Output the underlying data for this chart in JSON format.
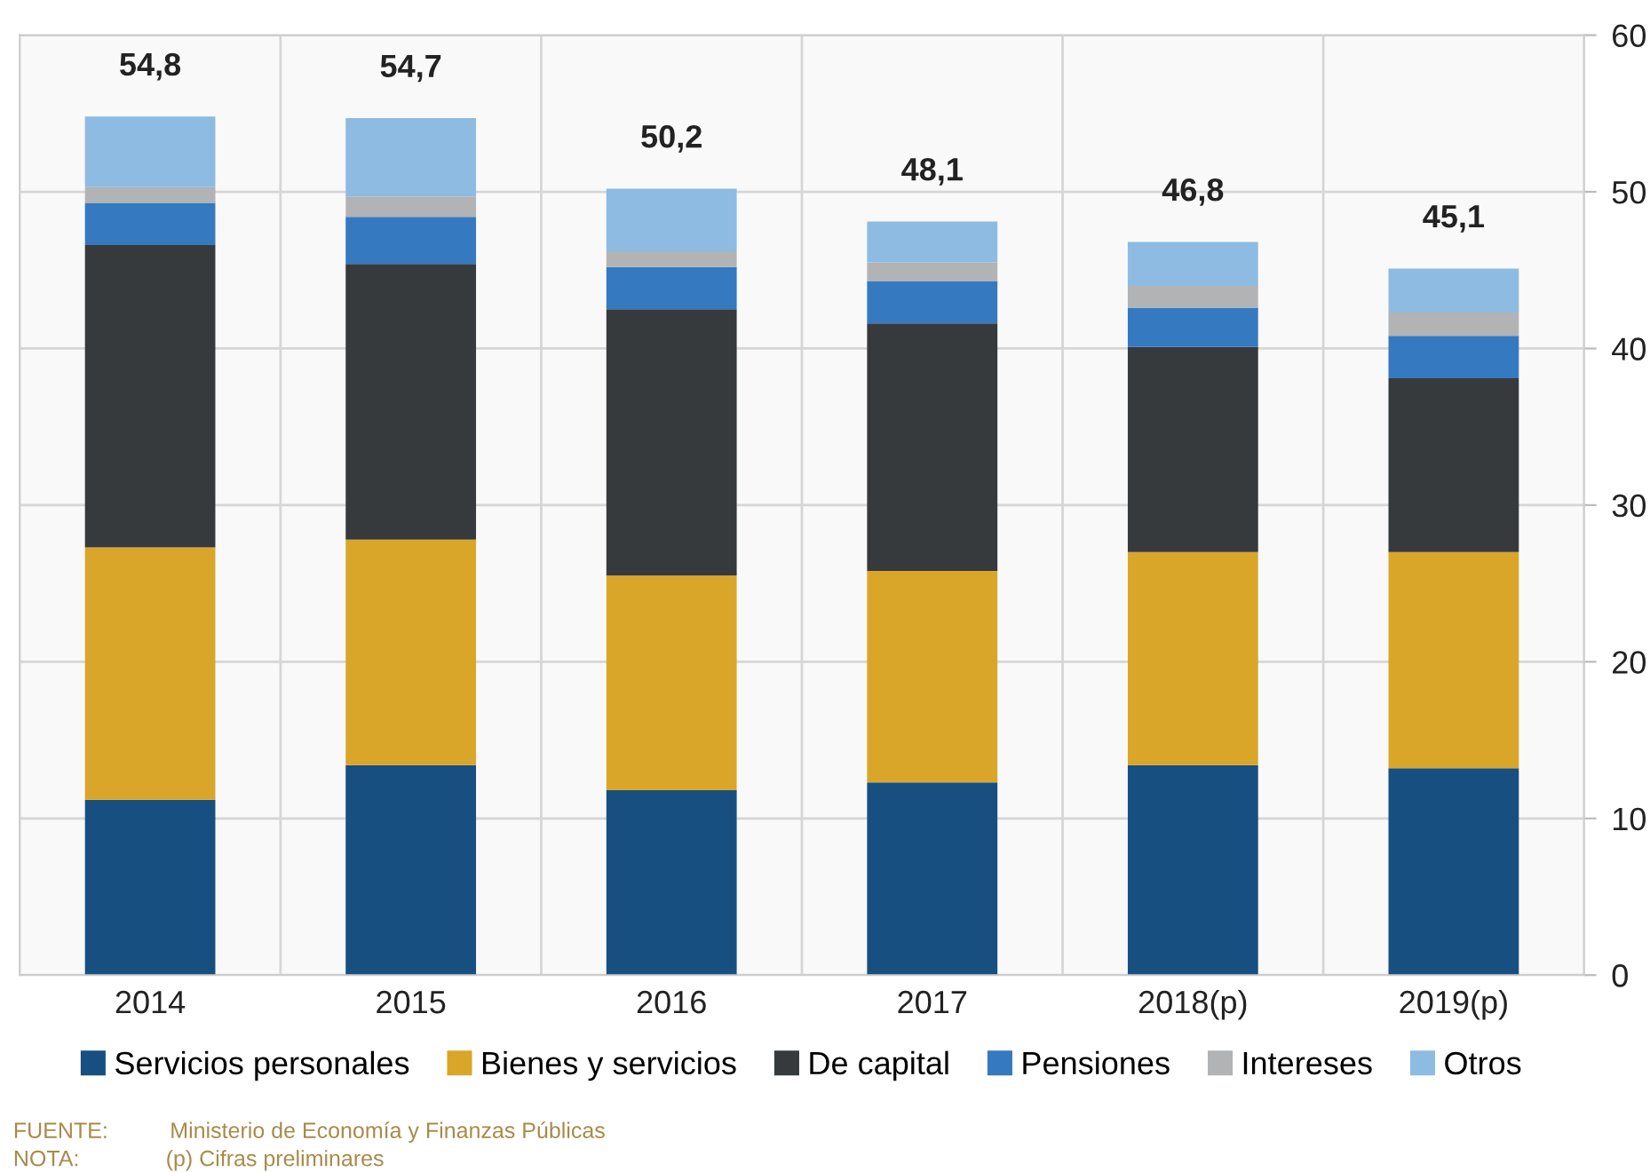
{
  "chart_data": {
    "type": "bar",
    "stacked": true,
    "categories": [
      "2014",
      "2015",
      "2016",
      "2017",
      "2018(p)",
      "2019(p)"
    ],
    "series": [
      {
        "name": "Servicios personales",
        "color": "#174f80",
        "values": [
          11.2,
          13.4,
          11.8,
          12.3,
          13.4,
          13.2
        ]
      },
      {
        "name": "Bienes y servicios",
        "color": "#d9a629",
        "values": [
          16.1,
          14.4,
          13.7,
          13.5,
          13.6,
          13.8
        ]
      },
      {
        "name": "De capital",
        "color": "#363a3d",
        "values": [
          19.3,
          17.6,
          17.0,
          15.8,
          13.1,
          11.1
        ]
      },
      {
        "name": "Pensiones",
        "color": "#3579c0",
        "values": [
          2.7,
          3.0,
          2.7,
          2.7,
          2.5,
          2.7
        ]
      },
      {
        "name": "Intereses",
        "color": "#b1b3b4",
        "values": [
          1.0,
          1.3,
          1.0,
          1.2,
          1.4,
          1.5
        ]
      },
      {
        "name": "Otros",
        "color": "#8dbbe2",
        "values": [
          4.5,
          5.0,
          4.0,
          2.6,
          2.8,
          2.8
        ]
      }
    ],
    "totals": [
      "54,8",
      "54,7",
      "50,2",
      "48,1",
      "46,8",
      "45,1"
    ],
    "ylim": [
      0,
      60
    ],
    "yticks": [
      0,
      10,
      20,
      30,
      40,
      50,
      60
    ],
    "grid": true,
    "legend": "bottom",
    "annotations": [
      "FUENTE:          Ministerio de Economía y Finanzas Públicas",
      "NOTA:              (p) Cifras preliminares"
    ]
  }
}
